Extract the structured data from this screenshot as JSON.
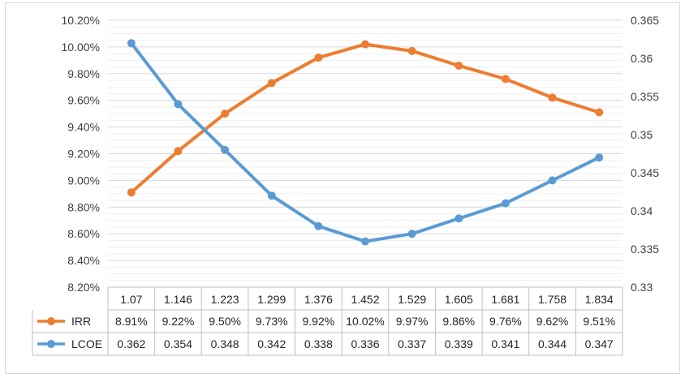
{
  "chart_data": {
    "type": "line",
    "title": "",
    "categories": [
      "1.07",
      "1.146",
      "1.223",
      "1.299",
      "1.376",
      "1.452",
      "1.529",
      "1.605",
      "1.681",
      "1.758",
      "1.834"
    ],
    "y_left": {
      "min": 8.2,
      "max": 10.2,
      "step": 0.2,
      "tick_labels": [
        "8.20%",
        "8.40%",
        "8.60%",
        "8.80%",
        "9.00%",
        "9.20%",
        "9.40%",
        "9.60%",
        "9.80%",
        "10.00%",
        "10.20%"
      ]
    },
    "y_right": {
      "min": 0.33,
      "max": 0.365,
      "step": 0.005,
      "tick_labels": [
        "0.33",
        "0.335",
        "0.34",
        "0.345",
        "0.35",
        "0.355",
        "0.36",
        "0.365"
      ]
    },
    "series": [
      {
        "name": "IRR",
        "axis": "left",
        "color": "#ed7d31",
        "values": [
          8.91,
          9.22,
          9.5,
          9.73,
          9.92,
          10.02,
          9.97,
          9.86,
          9.76,
          9.62,
          9.51
        ],
        "labels": [
          "8.91%",
          "9.22%",
          "9.50%",
          "9.73%",
          "9.92%",
          "10.02%",
          "9.97%",
          "9.86%",
          "9.76%",
          "9.62%",
          "9.51%"
        ]
      },
      {
        "name": "LCOE",
        "axis": "right",
        "color": "#5b9bd5",
        "values": [
          0.362,
          0.354,
          0.348,
          0.342,
          0.338,
          0.336,
          0.337,
          0.339,
          0.341,
          0.344,
          0.347
        ],
        "labels": [
          "0.362",
          "0.354",
          "0.348",
          "0.342",
          "0.338",
          "0.336",
          "0.337",
          "0.339",
          "0.341",
          "0.344",
          "0.347"
        ]
      }
    ],
    "grid": true,
    "legend": "data-table"
  }
}
